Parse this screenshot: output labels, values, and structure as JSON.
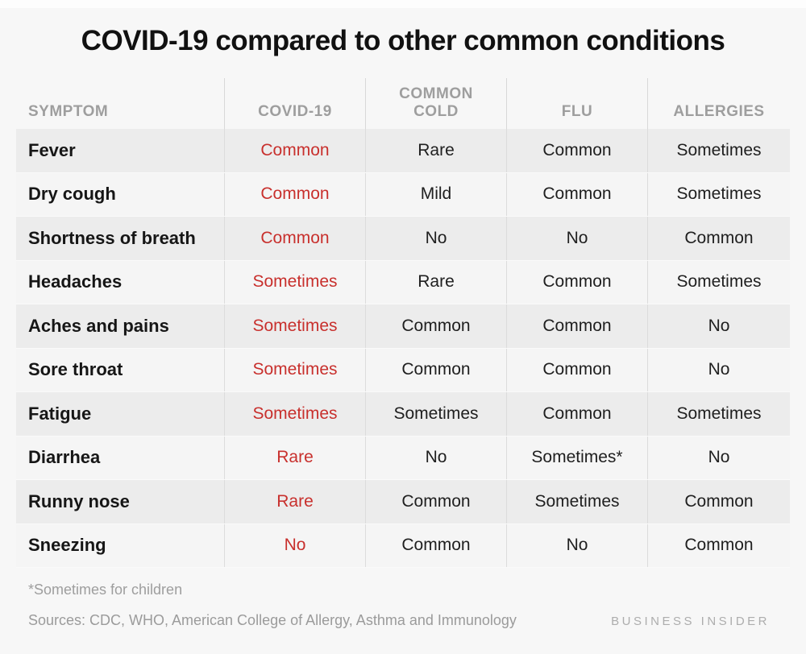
{
  "title": "COVID-19 compared to other common conditions",
  "chart_data": {
    "type": "table",
    "title": "COVID-19 compared to other common conditions",
    "columns": [
      "SYMPTOM",
      "COVID-19",
      "COMMON COLD",
      "FLU",
      "ALLERGIES"
    ],
    "highlight_column": "COVID-19",
    "rows": [
      [
        "Fever",
        "Common",
        "Rare",
        "Common",
        "Sometimes"
      ],
      [
        "Dry cough",
        "Common",
        "Mild",
        "Common",
        "Sometimes"
      ],
      [
        "Shortness of breath",
        "Common",
        "No",
        "No",
        "Common"
      ],
      [
        "Headaches",
        "Sometimes",
        "Rare",
        "Common",
        "Sometimes"
      ],
      [
        "Aches and pains",
        "Sometimes",
        "Common",
        "Common",
        "No"
      ],
      [
        "Sore throat",
        "Sometimes",
        "Common",
        "Common",
        "No"
      ],
      [
        "Fatigue",
        "Sometimes",
        "Sometimes",
        "Common",
        "Sometimes"
      ],
      [
        "Diarrhea",
        "Rare",
        "No",
        "Sometimes*",
        "No"
      ],
      [
        "Runny nose",
        "Rare",
        "Common",
        "Sometimes",
        "Common"
      ],
      [
        "Sneezing",
        "No",
        "Common",
        "No",
        "Common"
      ]
    ],
    "footnote": "*Sometimes for children",
    "sources": "Sources: CDC, WHO,  American College of Allergy, Asthma and Immunology",
    "brand": "BUSINESS INSIDER",
    "layout": {
      "grid": "row-striped",
      "legend": "none"
    }
  },
  "colors": {
    "accent_red": "#c8302d",
    "header_gray": "#9e9e9e",
    "row_shade": "#ececec",
    "background": "#f7f7f7",
    "text_dark": "#161616",
    "footer_gray": "#9b9b9b",
    "divider": "#d8d8d8"
  }
}
